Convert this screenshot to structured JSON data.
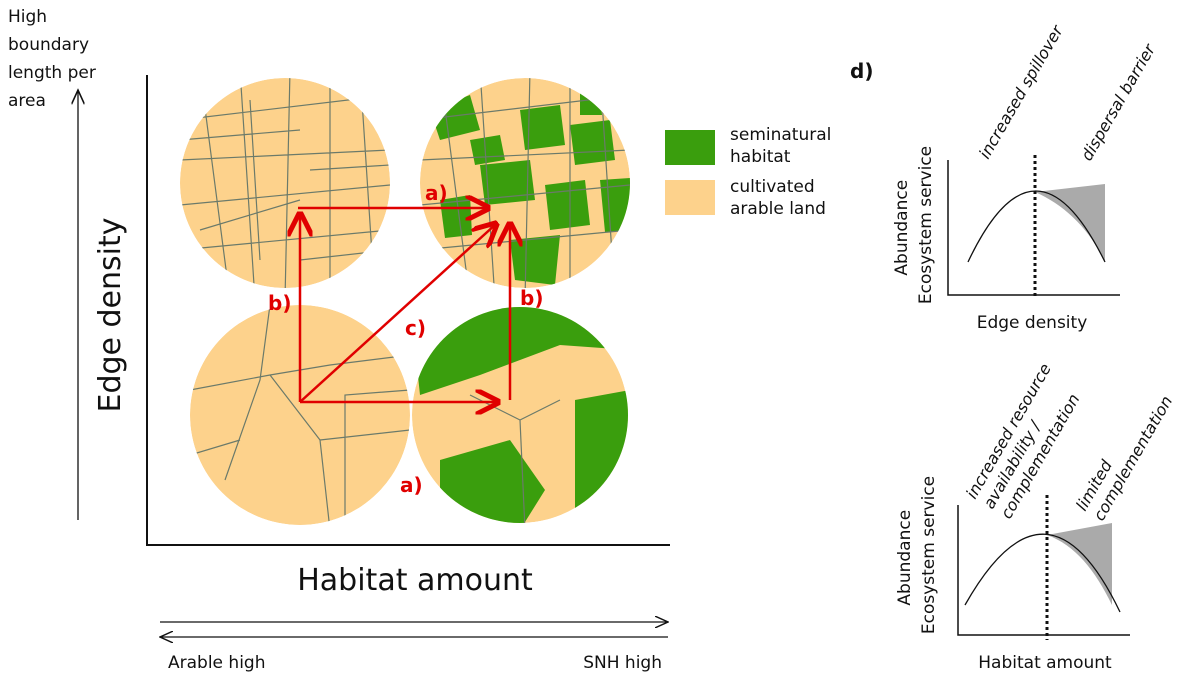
{
  "y_arrow_label": [
    "High",
    "boundary",
    "length per",
    "area"
  ],
  "y_axis_label": "Edge density",
  "x_axis_label": "Habitat amount",
  "x_arrow_left": "Arable high",
  "x_arrow_right": "SNH high",
  "legend": [
    {
      "label": [
        "seminatural",
        "habitat"
      ]
    },
    {
      "label": [
        "cultivated",
        "arable land"
      ]
    }
  ],
  "arrow_labels": [
    "a)",
    "a)",
    "b)",
    "b)",
    "c)"
  ],
  "panel_d": {
    "label": "d)",
    "charts": [
      {
        "y_label": [
          "Abundance",
          "Ecosystem service"
        ],
        "x_label": "Edge density",
        "annotations": [
          [
            "increased spillover"
          ],
          [
            "dispersal barrier"
          ]
        ]
      },
      {
        "y_label": [
          "Abundance",
          "Ecosystem service"
        ],
        "x_label": "Habitat amount",
        "annotations": [
          [
            "increased resource",
            "availability /",
            "complementation"
          ],
          [
            "limited",
            "complementation"
          ]
        ]
      }
    ]
  }
}
